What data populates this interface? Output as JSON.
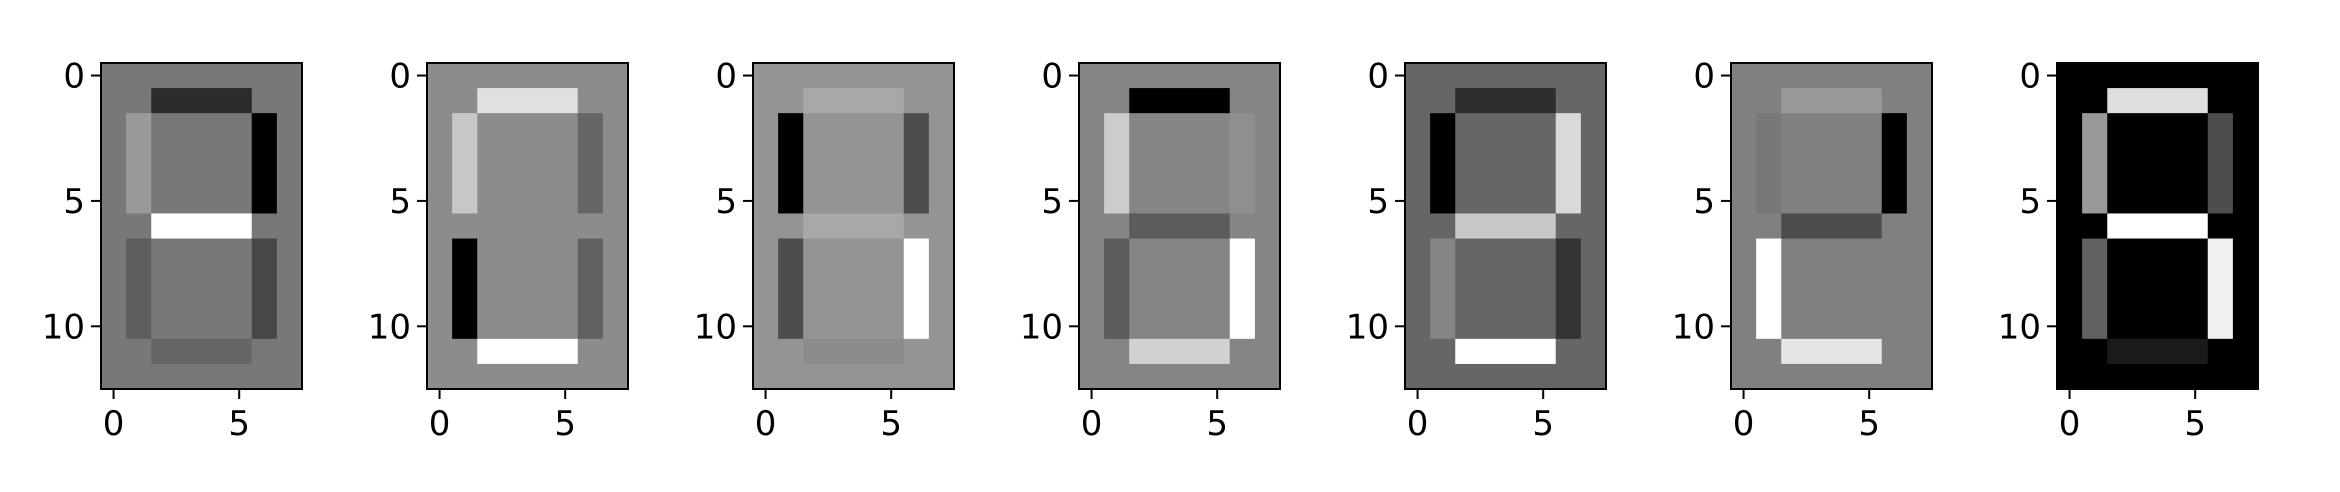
{
  "figure": {
    "background": "#ffffff",
    "panel_count": 7
  },
  "chart_data": [
    {
      "type": "heatmap",
      "colormap": "gray",
      "grid": false,
      "title": "",
      "xlabel": "",
      "ylabel": "",
      "xlim": [
        -0.5,
        7.5
      ],
      "ylim": [
        12.5,
        -0.5
      ],
      "xticks": [
        0,
        5
      ],
      "yticks": [
        0,
        5,
        10
      ],
      "xtick_labels": [
        "0",
        "5"
      ],
      "ytick_labels": [
        "0",
        "5",
        "10"
      ],
      "background_gray": 0.47,
      "segments": {
        "top": 0.17,
        "upper_left": 0.6,
        "upper_right": 0.0,
        "middle": 1.0,
        "lower_left": 0.37,
        "lower_right": 0.28,
        "bottom": 0.4
      }
    },
    {
      "type": "heatmap",
      "colormap": "gray",
      "grid": false,
      "title": "",
      "xlabel": "",
      "ylabel": "",
      "xlim": [
        -0.5,
        7.5
      ],
      "ylim": [
        12.5,
        -0.5
      ],
      "xticks": [
        0,
        5
      ],
      "yticks": [
        0,
        5,
        10
      ],
      "xtick_labels": [
        "0",
        "5"
      ],
      "ytick_labels": [
        "0",
        "5",
        "10"
      ],
      "background_gray": 0.55,
      "segments": {
        "top": 0.88,
        "upper_left": 0.78,
        "upper_right": 0.4,
        "middle": 0.55,
        "lower_left": 0.0,
        "lower_right": 0.38,
        "bottom": 1.0
      }
    },
    {
      "type": "heatmap",
      "colormap": "gray",
      "grid": false,
      "title": "",
      "xlabel": "",
      "ylabel": "",
      "xlim": [
        -0.5,
        7.5
      ],
      "ylim": [
        12.5,
        -0.5
      ],
      "xticks": [
        0,
        5
      ],
      "yticks": [
        0,
        5,
        10
      ],
      "xtick_labels": [
        "0",
        "5"
      ],
      "ytick_labels": [
        "0",
        "5",
        "10"
      ],
      "background_gray": 0.58,
      "segments": {
        "top": 0.66,
        "upper_left": 0.0,
        "upper_right": 0.3,
        "middle": 0.66,
        "lower_left": 0.3,
        "lower_right": 1.0,
        "bottom": 0.55
      }
    },
    {
      "type": "heatmap",
      "colormap": "gray",
      "grid": false,
      "title": "",
      "xlabel": "",
      "ylabel": "",
      "xlim": [
        -0.5,
        7.5
      ],
      "ylim": [
        12.5,
        -0.5
      ],
      "xticks": [
        0,
        5
      ],
      "yticks": [
        0,
        5,
        10
      ],
      "xtick_labels": [
        "0",
        "5"
      ],
      "ytick_labels": [
        "0",
        "5",
        "10"
      ],
      "background_gray": 0.52,
      "segments": {
        "top": 0.0,
        "upper_left": 0.8,
        "upper_right": 0.56,
        "middle": 0.36,
        "lower_left": 0.36,
        "lower_right": 1.0,
        "bottom": 0.82
      }
    },
    {
      "type": "heatmap",
      "colormap": "gray",
      "grid": false,
      "title": "",
      "xlabel": "",
      "ylabel": "",
      "xlim": [
        -0.5,
        7.5
      ],
      "ylim": [
        12.5,
        -0.5
      ],
      "xticks": [
        0,
        5
      ],
      "yticks": [
        0,
        5,
        10
      ],
      "xtick_labels": [
        "0",
        "5"
      ],
      "ytick_labels": [
        "0",
        "5",
        "10"
      ],
      "background_gray": 0.4,
      "segments": {
        "top": 0.18,
        "upper_left": 0.0,
        "upper_right": 0.85,
        "middle": 0.78,
        "lower_left": 0.52,
        "lower_right": 0.2,
        "bottom": 1.0
      }
    },
    {
      "type": "heatmap",
      "colormap": "gray",
      "grid": false,
      "title": "",
      "xlabel": "",
      "ylabel": "",
      "xlim": [
        -0.5,
        7.5
      ],
      "ylim": [
        12.5,
        -0.5
      ],
      "xticks": [
        0,
        5
      ],
      "yticks": [
        0,
        5,
        10
      ],
      "xtick_labels": [
        "0",
        "5"
      ],
      "ytick_labels": [
        "0",
        "5",
        "10"
      ],
      "background_gray": 0.5,
      "segments": {
        "top": 0.6,
        "upper_left": 0.47,
        "upper_right": 0.0,
        "middle": 0.3,
        "lower_left": 1.0,
        "lower_right": 0.5,
        "bottom": 0.9
      }
    },
    {
      "type": "heatmap",
      "colormap": "gray",
      "grid": false,
      "title": "",
      "xlabel": "",
      "ylabel": "",
      "xlim": [
        -0.5,
        7.5
      ],
      "ylim": [
        12.5,
        -0.5
      ],
      "xticks": [
        0,
        5
      ],
      "yticks": [
        0,
        5,
        10
      ],
      "xtick_labels": [
        "0",
        "5"
      ],
      "ytick_labels": [
        "0",
        "5",
        "10"
      ],
      "background_gray": 0.0,
      "segments": {
        "top": 0.87,
        "upper_left": 0.6,
        "upper_right": 0.3,
        "middle": 1.0,
        "lower_left": 0.38,
        "lower_right": 0.94,
        "bottom": 0.1
      }
    }
  ]
}
